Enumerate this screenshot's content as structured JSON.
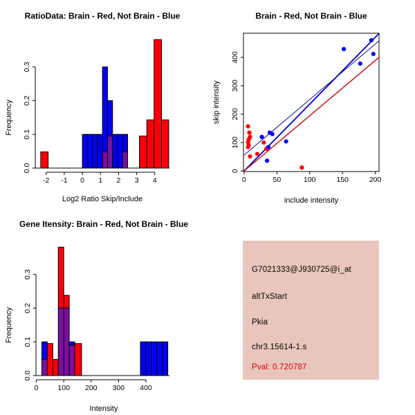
{
  "colors": {
    "red": "#FB0007",
    "blue": "#0000F4",
    "purple": "#7D0EA0",
    "line_blue": "#0000CD",
    "line_red": "#CC2222",
    "line_navy": "#14148C",
    "axis": "#000000",
    "panel_pink": "#E8C6BD",
    "pval_red": "#DD0000"
  },
  "chart_data": [
    {
      "id": "ratio_hist",
      "type": "bar",
      "title": "RatioData: Brain - Red, Not Brain - Blue",
      "xlabel": "Log2 Ratio Skip/Include",
      "ylabel": "Frequency",
      "xlim": [
        -2.6,
        4.81
      ],
      "ylim": [
        0,
        0.4
      ],
      "xticks": [
        -2,
        -1,
        0,
        1,
        2,
        3,
        4
      ],
      "xtick_labels": [
        "-2",
        "-1",
        "0",
        "1",
        "2",
        "3",
        "4"
      ],
      "yticks": [
        0,
        0.1,
        0.2,
        0.3
      ],
      "ytick_labels": [
        "0.0",
        "0.1",
        "0.2",
        "0.3"
      ],
      "series_note": "red = Brain, blue = Not Brain, purple = overlap",
      "bars": [
        {
          "x0": -2.3,
          "x1": -1.89,
          "segs": [
            [
              "red",
              0,
              0.048
            ]
          ]
        },
        {
          "x0": 0.0,
          "x1": 0.278,
          "segs": [
            [
              "blue",
              0,
              0.1
            ]
          ]
        },
        {
          "x0": 0.278,
          "x1": 0.556,
          "segs": [
            [
              "blue",
              0,
              0.1
            ]
          ]
        },
        {
          "x0": 0.556,
          "x1": 0.833,
          "segs": [
            [
              "blue",
              0,
              0.1
            ]
          ]
        },
        {
          "x0": 0.833,
          "x1": 1.111,
          "segs": [
            [
              "blue",
              0,
              0.1
            ]
          ]
        },
        {
          "x0": 1.111,
          "x1": 1.389,
          "segs": [
            [
              "purple",
              0,
              0.048
            ],
            [
              "blue",
              0.048,
              0.3
            ]
          ]
        },
        {
          "x0": 1.389,
          "x1": 1.667,
          "segs": [
            [
              "purple",
              0,
              0.095
            ],
            [
              "blue",
              0.095,
              0.2
            ]
          ]
        },
        {
          "x0": 1.667,
          "x1": 1.944,
          "segs": [
            [
              "blue",
              0,
              0.1
            ]
          ]
        },
        {
          "x0": 1.944,
          "x1": 2.222,
          "segs": [
            [
              "blue",
              0,
              0.1
            ]
          ]
        },
        {
          "x0": 2.222,
          "x1": 2.5,
          "segs": [
            [
              "purple",
              0,
              0.048
            ],
            [
              "blue",
              0.048,
              0.1
            ]
          ]
        },
        {
          "x0": 3.15,
          "x1": 3.56,
          "segs": [
            [
              "red",
              0,
              0.095
            ]
          ]
        },
        {
          "x0": 3.56,
          "x1": 3.96,
          "segs": [
            [
              "red",
              0,
              0.143
            ]
          ]
        },
        {
          "x0": 3.96,
          "x1": 4.37,
          "segs": [
            [
              "red",
              0,
              0.381
            ]
          ]
        },
        {
          "x0": 4.37,
          "x1": 4.77,
          "segs": [
            [
              "red",
              0,
              0.143
            ]
          ]
        }
      ]
    },
    {
      "id": "intensity_scatter",
      "type": "scatter",
      "title": "Brain - Red, Not Brain - Blue",
      "xlabel": "include intensity",
      "ylabel": "skip intensity",
      "xlim": [
        -1,
        205.7
      ],
      "ylim": [
        -2,
        485
      ],
      "xticks": [
        0,
        50,
        100,
        150,
        200
      ],
      "xtick_labels": [
        "0",
        "50",
        "100",
        "150",
        "200"
      ],
      "yticks": [
        0,
        100,
        200,
        300,
        400
      ],
      "ytick_labels": [
        "0",
        "100",
        "200",
        "300",
        "400"
      ],
      "series": [
        {
          "name": "Brain",
          "color": "red",
          "points": [
            [
              6,
              157
            ],
            [
              8,
              135
            ],
            [
              9,
              120
            ],
            [
              7,
              111
            ],
            [
              6,
              101
            ],
            [
              7,
              92
            ],
            [
              6,
              84
            ],
            [
              9,
              51
            ],
            [
              20,
              60
            ],
            [
              30,
              100
            ],
            [
              34,
              78
            ],
            [
              88,
              12
            ]
          ]
        },
        {
          "name": "Not Brain",
          "color": "blue",
          "points": [
            [
              27,
              120
            ],
            [
              39,
              135
            ],
            [
              43,
              130
            ],
            [
              37,
              84
            ],
            [
              35,
              36
            ],
            [
              64,
              104
            ],
            [
              152,
              429
            ],
            [
              177,
              378
            ],
            [
              194,
              460
            ],
            [
              197,
              412
            ]
          ]
        }
      ],
      "lines": [
        {
          "name": "reference-line",
          "color": "line_navy",
          "width": 1,
          "from": [
            0,
            56
          ],
          "to": [
            205.7,
            458
          ]
        },
        {
          "name": "not-brain-fit",
          "color": "line_blue",
          "width": 1.8,
          "from": [
            0,
            0
          ],
          "to": [
            205.7,
            484
          ]
        },
        {
          "name": "brain-fit",
          "color": "line_red",
          "width": 1.6,
          "from": [
            0,
            0
          ],
          "to": [
            205.7,
            400
          ]
        }
      ]
    },
    {
      "id": "gene_hist",
      "type": "bar",
      "title": "Gene Itensity: Brain - Red, Not Brain - Blue",
      "xlabel": "Intensity",
      "ylabel": "Frequency",
      "xlim": [
        -1.5,
        486
      ],
      "ylim": [
        0,
        0.4
      ],
      "xticks": [
        0,
        100,
        200,
        300,
        400
      ],
      "xtick_labels": [
        "0",
        "100",
        "200",
        "300",
        "400"
      ],
      "yticks": [
        0,
        0.1,
        0.2,
        0.3
      ],
      "ytick_labels": [
        "0.0",
        "0.1",
        "0.2",
        "0.3"
      ],
      "series_note": "red = Brain, blue = Not Brain, purple = overlap",
      "bars": [
        {
          "x0": 20,
          "x1": 40,
          "segs": [
            [
              "purple",
              0,
              0.048
            ],
            [
              "blue",
              0.048,
              0.1
            ]
          ]
        },
        {
          "x0": 40,
          "x1": 60,
          "segs": [
            [
              "red",
              0,
              0.095
            ]
          ]
        },
        {
          "x0": 60,
          "x1": 80,
          "segs": [
            [
              "red",
              0,
              0.048
            ]
          ]
        },
        {
          "x0": 80,
          "x1": 100,
          "segs": [
            [
              "purple",
              0,
              0.2
            ],
            [
              "red",
              0.2,
              0.381
            ]
          ]
        },
        {
          "x0": 100,
          "x1": 120,
          "segs": [
            [
              "purple",
              0,
              0.2
            ],
            [
              "red",
              0.2,
              0.238
            ]
          ]
        },
        {
          "x0": 120,
          "x1": 140,
          "segs": [
            [
              "purple",
              0,
              0.09
            ],
            [
              "blue",
              0.09,
              0.1
            ]
          ]
        },
        {
          "x0": 140,
          "x1": 165,
          "segs": [
            [
              "red",
              0,
              0.095
            ]
          ]
        },
        {
          "x0": 380,
          "x1": 400,
          "segs": [
            [
              "blue",
              0,
              0.1
            ]
          ]
        },
        {
          "x0": 400,
          "x1": 420,
          "segs": [
            [
              "blue",
              0,
              0.1
            ]
          ]
        },
        {
          "x0": 420,
          "x1": 440,
          "segs": [
            [
              "blue",
              0,
              0.1
            ]
          ]
        },
        {
          "x0": 440,
          "x1": 460,
          "segs": [
            [
              "blue",
              0,
              0.1
            ]
          ]
        },
        {
          "x0": 460,
          "x1": 480,
          "segs": [
            [
              "blue",
              0,
              0.1
            ]
          ]
        }
      ]
    }
  ],
  "info_panel": {
    "bg_color": "#E8C6BD",
    "lines": [
      "G7021333@J930725@i_at",
      "altTxStart",
      "Pkia",
      "chr3.15614-1.s"
    ],
    "pval": "Pval: 0.720787",
    "pval_color": "#DD0000"
  }
}
